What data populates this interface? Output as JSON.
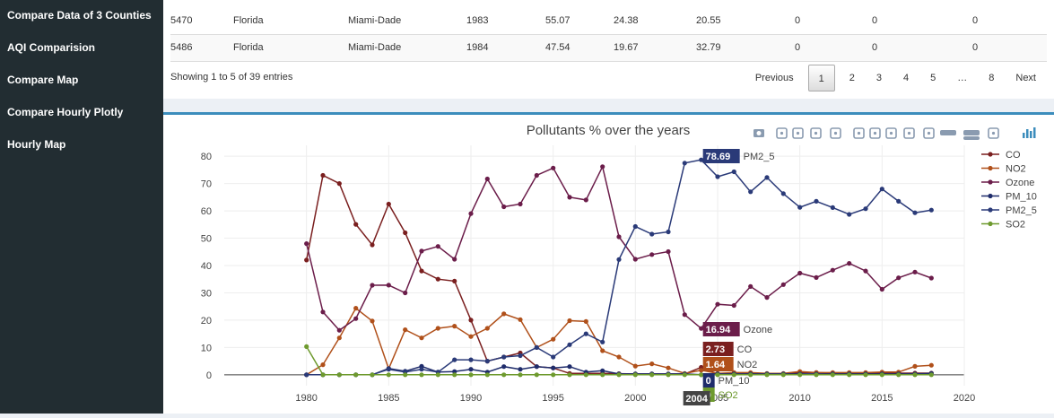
{
  "sidebar": {
    "items": [
      {
        "label": "Compare Data of 3 Counties"
      },
      {
        "label": "AQI Comparision"
      },
      {
        "label": "Compare Map"
      },
      {
        "label": "Compare Hourly Plotly"
      },
      {
        "label": "Hourly Map"
      }
    ]
  },
  "table": {
    "rows": [
      [
        "5470",
        "Florida",
        "Miami-Dade",
        "1983",
        "55.07",
        "24.38",
        "20.55",
        "0",
        "0",
        "0"
      ],
      [
        "5486",
        "Florida",
        "Miami-Dade",
        "1984",
        "47.54",
        "19.67",
        "32.79",
        "0",
        "0",
        "0"
      ]
    ]
  },
  "table_info": "Showing 1 to 5 of 39 entries",
  "pagination": {
    "previous": "Previous",
    "pages": [
      "1",
      "2",
      "3",
      "4",
      "5",
      "…",
      "8"
    ],
    "current": "1",
    "next": "Next"
  },
  "colors": {
    "sidebar_bg": "#222d32",
    "accent": "#3c8dbc",
    "CO": "#7a1f1f",
    "NO2": "#b0501a",
    "Ozone": "#6b1d4a",
    "PM_10": "#1f2c6b",
    "PM2_5": "#2a3a78",
    "SO2": "#6e9a2e"
  },
  "toolbar_icons": [
    "camera-icon",
    "zoom-icon",
    "pan-icon",
    "box-select-icon",
    "lasso-icon",
    "zoom-in-icon",
    "zoom-out-icon",
    "autoscale-icon",
    "reset-axes-icon",
    "spike-lines-icon",
    "hover-closest-icon",
    "hover-compare-icon",
    "edit-in-chart-studio-icon",
    "plotly-logo-icon"
  ],
  "chart_data": {
    "type": "line",
    "title": "Pollutants % over the years",
    "x": [
      1980,
      1981,
      1982,
      1983,
      1984,
      1985,
      1986,
      1987,
      1988,
      1989,
      1990,
      1991,
      1992,
      1993,
      1994,
      1995,
      1996,
      1997,
      1998,
      1999,
      2000,
      2001,
      2002,
      2003,
      2004,
      2005,
      2006,
      2007,
      2008,
      2009,
      2010,
      2011,
      2012,
      2013,
      2014,
      2015,
      2016,
      2017,
      2018
    ],
    "xlim": [
      1975,
      2020
    ],
    "ylim": [
      -4,
      84
    ],
    "xticks": [
      "1980",
      "1985",
      "1990",
      "1995",
      "2000",
      "2005",
      "2010",
      "2015",
      "2020"
    ],
    "yticks": [
      "0",
      "10",
      "20",
      "30",
      "40",
      "50",
      "60",
      "70",
      "80"
    ],
    "grid": true,
    "legend_position": "right",
    "series": [
      {
        "name": "CO",
        "color": "#7a1f1f",
        "values": [
          42,
          73,
          70,
          55.07,
          47.54,
          62.5,
          52,
          38,
          35,
          34.3,
          20,
          5,
          6.5,
          8,
          3,
          2.5,
          0.5,
          0.5,
          0.5,
          0.4,
          0.3,
          0.3,
          0.3,
          0.3,
          2.73,
          0.3,
          0.3,
          0.3,
          0.3,
          0.3,
          0.8,
          0.8,
          0.6,
          0.6,
          0.6,
          0.6,
          0.6,
          0.6,
          0.6
        ]
      },
      {
        "name": "NO2",
        "color": "#b0501a",
        "values": [
          0,
          3.7,
          13.5,
          24.38,
          19.67,
          2.2,
          16.5,
          13.5,
          17,
          17.8,
          14,
          17,
          22.3,
          20.2,
          10,
          13,
          19.8,
          19.5,
          8.8,
          6.5,
          3.2,
          4,
          2.5,
          0.5,
          1.64,
          0.5,
          0.8,
          0.8,
          0.5,
          0.5,
          1.2,
          0.8,
          0.8,
          0.8,
          0.8,
          1,
          1,
          3.1,
          3.5
        ]
      },
      {
        "name": "Ozone",
        "color": "#6b1d4a",
        "values": [
          48,
          23,
          16.3,
          20.55,
          32.79,
          32.8,
          30,
          45.3,
          47,
          42.3,
          59,
          71.7,
          61.5,
          62.5,
          73,
          75.7,
          65,
          64,
          76.2,
          50.5,
          42.3,
          44,
          45.1,
          22,
          16.94,
          25.8,
          25.4,
          32.3,
          28.3,
          33,
          37.2,
          35.6,
          38.3,
          40.8,
          38,
          31.3,
          35.5,
          37.6,
          35.4
        ]
      },
      {
        "name": "PM_10",
        "color": "#1f2c6b",
        "values": [
          0,
          0,
          0,
          0,
          0,
          2.3,
          1.3,
          3.1,
          1,
          1.2,
          2,
          1,
          3,
          2,
          3,
          2.5,
          3,
          1,
          1.5,
          0.3,
          0.3,
          0.3,
          0.3,
          0.3,
          0,
          0.3,
          0.3,
          0.3,
          0.3,
          0.3,
          0.3,
          0.3,
          0.3,
          0.3,
          0.3,
          0.3,
          0.3,
          0.3,
          0.5
        ]
      },
      {
        "name": "PM2_5",
        "color": "#2a3a78",
        "values": [
          0,
          0,
          0,
          0,
          0,
          2,
          1,
          2,
          1,
          5.5,
          5.5,
          5,
          6.5,
          7,
          10,
          6.5,
          11,
          15,
          12,
          42.2,
          54.3,
          51.5,
          52.3,
          77.5,
          78.69,
          72.5,
          74.3,
          67,
          72.2,
          66.3,
          61.3,
          63.5,
          61.2,
          58.7,
          60.8,
          68,
          63.5,
          59.3,
          60.3
        ]
      },
      {
        "name": "SO2",
        "color": "#6e9a2e",
        "values": [
          10.3,
          0,
          0,
          0,
          0,
          0,
          0,
          0,
          0,
          0,
          0,
          0,
          0,
          0,
          0,
          0,
          0,
          0,
          0,
          0,
          0,
          0,
          0,
          0,
          0,
          0,
          0,
          0,
          0,
          0,
          0,
          0,
          0,
          0,
          0,
          0,
          0,
          0,
          0
        ]
      }
    ],
    "hover_x_label": "2004",
    "hover_labels": [
      {
        "series": "PM2_5",
        "value": "78.69"
      },
      {
        "series": "Ozone",
        "value": "16.94"
      },
      {
        "series": "CO",
        "value": "2.73"
      },
      {
        "series": "NO2",
        "value": "1.64"
      },
      {
        "series": "PM_10",
        "value": "0"
      },
      {
        "series": "SO2",
        "value": "0"
      }
    ]
  }
}
